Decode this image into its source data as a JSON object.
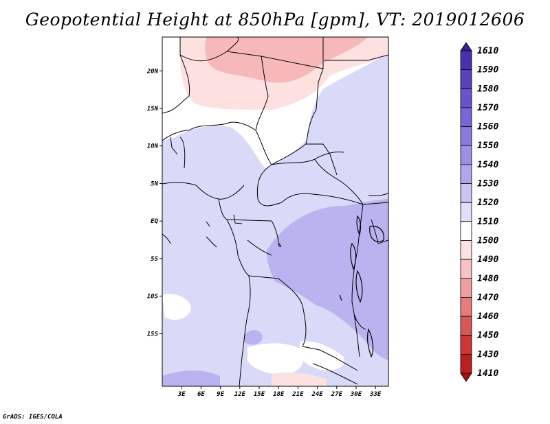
{
  "title": "Geopotential Height at 850hPa [gpm], VT: 2019012606",
  "credit": "GrADS: IGES/COLA",
  "map": {
    "lat_ticks": [
      "20N",
      "15N",
      "10N",
      "5N",
      "EQ",
      "5S",
      "10S",
      "15S"
    ],
    "lon_ticks": [
      "3E",
      "6E",
      "9E",
      "12E",
      "15E",
      "18E",
      "21E",
      "24E",
      "27E",
      "30E",
      "33E"
    ],
    "extent": {
      "lon_min": 0,
      "lon_max": 35,
      "lat_min": -22,
      "lat_max": 24.5
    }
  },
  "colorbar": {
    "levels": [
      "1610",
      "1590",
      "1580",
      "1570",
      "1560",
      "1550",
      "1540",
      "1530",
      "1520",
      "1510",
      "1500",
      "1490",
      "1480",
      "1470",
      "1460",
      "1450",
      "1430",
      "1410"
    ],
    "colors": [
      "#3a1f9c",
      "#4a2fae",
      "#5a40bf",
      "#6a52cc",
      "#7a65d6",
      "#8b79df",
      "#9d8ee6",
      "#b0a6ec",
      "#c9c4f2",
      "#e0defa",
      "#ffffff",
      "#fde1e1",
      "#f8c2c2",
      "#f0a0a0",
      "#e67c7c",
      "#db5757",
      "#cf3535",
      "#bd1e1e",
      "#a50f0f"
    ]
  },
  "regions": [
    {
      "name": "light-blue-base",
      "color": "#d9d9f8"
    },
    {
      "name": "white-sahel",
      "color": "#ffffff"
    },
    {
      "name": "pink-sahara",
      "color": "#fde1e1"
    },
    {
      "name": "red-core",
      "color": "#f6b8b8"
    },
    {
      "name": "medium-blue-congo",
      "color": "#b9b3f0"
    }
  ]
}
